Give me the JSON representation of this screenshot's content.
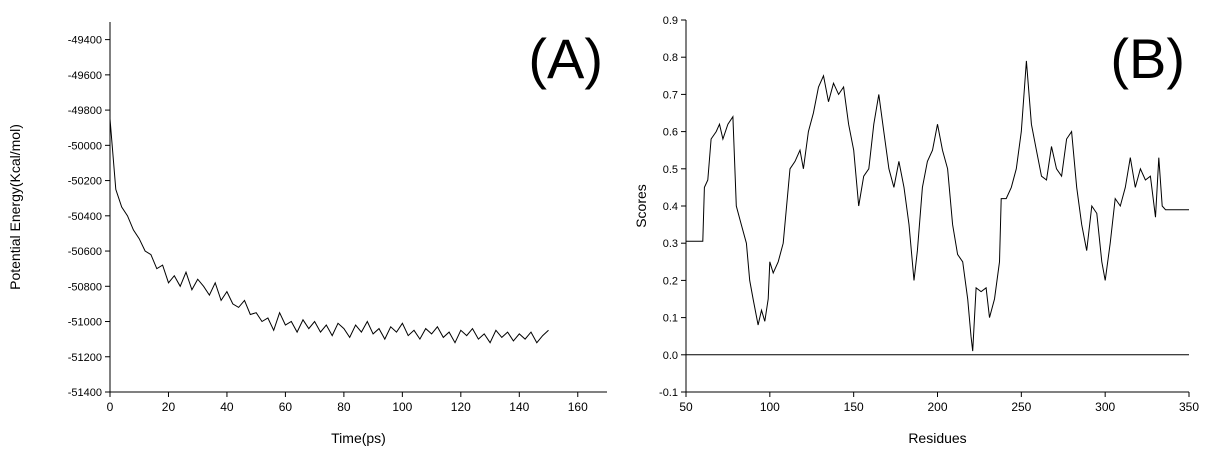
{
  "chart_data": [
    {
      "type": "line",
      "annotation": "(A)",
      "xlabel": "Time(ps)",
      "ylabel": "Potential Energy(Kcal/mol)",
      "xlim": [
        0,
        170
      ],
      "xticks": [
        0,
        20,
        40,
        60,
        80,
        100,
        120,
        140,
        160
      ],
      "ylim": [
        -51400,
        -49300
      ],
      "yticks": [
        -51400,
        -51200,
        -51000,
        -50800,
        -50600,
        -50400,
        -50200,
        -50000,
        -49800,
        -49600,
        -49400
      ],
      "color": "#000000",
      "x": [
        0,
        2,
        4,
        6,
        8,
        10,
        12,
        14,
        16,
        18,
        20,
        22,
        24,
        26,
        28,
        30,
        32,
        34,
        36,
        38,
        40,
        42,
        44,
        46,
        48,
        50,
        52,
        54,
        56,
        58,
        60,
        62,
        64,
        66,
        68,
        70,
        72,
        74,
        76,
        78,
        80,
        82,
        84,
        86,
        88,
        90,
        92,
        94,
        96,
        98,
        100,
        102,
        104,
        106,
        108,
        110,
        112,
        114,
        116,
        118,
        120,
        122,
        124,
        126,
        128,
        130,
        132,
        134,
        136,
        138,
        140,
        142,
        144,
        146,
        148,
        150
      ],
      "values": [
        -49850,
        -50250,
        -50350,
        -50400,
        -50480,
        -50530,
        -50600,
        -50620,
        -50700,
        -50680,
        -50780,
        -50740,
        -50800,
        -50720,
        -50820,
        -50760,
        -50800,
        -50850,
        -50780,
        -50880,
        -50830,
        -50900,
        -50920,
        -50880,
        -50960,
        -50950,
        -51000,
        -50980,
        -51050,
        -50950,
        -51020,
        -51000,
        -51060,
        -50990,
        -51040,
        -51000,
        -51060,
        -51020,
        -51080,
        -51010,
        -51040,
        -51090,
        -51020,
        -51060,
        -51000,
        -51070,
        -51040,
        -51100,
        -51030,
        -51060,
        -51010,
        -51080,
        -51050,
        -51100,
        -51040,
        -51070,
        -51030,
        -51090,
        -51060,
        -51120,
        -51050,
        -51080,
        -51040,
        -51100,
        -51070,
        -51120,
        -51050,
        -51090,
        -51060,
        -51110,
        -51070,
        -51100,
        -51060,
        -51120,
        -51080,
        -51050
      ]
    },
    {
      "type": "line",
      "annotation": "(B)",
      "xlabel": "Residues",
      "ylabel": "Scores",
      "xlim": [
        50,
        350
      ],
      "xticks": [
        50,
        100,
        150,
        200,
        250,
        300,
        350
      ],
      "ylim": [
        -0.1,
        0.9
      ],
      "yticks": [
        -0.1,
        {
          "value": 0,
          "label": "0.0"
        },
        0.1,
        0.2,
        0.3,
        0.4,
        0.5,
        0.6,
        0.7,
        0.8,
        0.9
      ],
      "hline": 0,
      "color": "#000000",
      "x": [
        50,
        60,
        61,
        63,
        65,
        68,
        70,
        72,
        75,
        78,
        80,
        83,
        86,
        88,
        90,
        93,
        95,
        97,
        99,
        100,
        102,
        105,
        108,
        110,
        112,
        115,
        118,
        120,
        123,
        126,
        129,
        132,
        135,
        138,
        141,
        144,
        147,
        150,
        153,
        156,
        159,
        162,
        165,
        168,
        171,
        174,
        177,
        180,
        183,
        186,
        188,
        191,
        194,
        197,
        200,
        203,
        206,
        209,
        212,
        215,
        218,
        220,
        221,
        223,
        226,
        229,
        231,
        234,
        237,
        238,
        241,
        244,
        247,
        250,
        253,
        256,
        259,
        262,
        265,
        268,
        271,
        274,
        277,
        280,
        283,
        286,
        289,
        292,
        295,
        298,
        300,
        303,
        306,
        309,
        312,
        315,
        318,
        321,
        324,
        327,
        330,
        332,
        334,
        336,
        350
      ],
      "values": [
        0.305,
        0.305,
        0.45,
        0.47,
        0.58,
        0.6,
        0.62,
        0.58,
        0.62,
        0.64,
        0.4,
        0.35,
        0.3,
        0.2,
        0.15,
        0.08,
        0.12,
        0.09,
        0.15,
        0.25,
        0.22,
        0.25,
        0.3,
        0.4,
        0.5,
        0.52,
        0.55,
        0.5,
        0.6,
        0.65,
        0.72,
        0.75,
        0.68,
        0.73,
        0.7,
        0.72,
        0.62,
        0.55,
        0.4,
        0.48,
        0.5,
        0.62,
        0.7,
        0.6,
        0.5,
        0.45,
        0.52,
        0.45,
        0.35,
        0.2,
        0.28,
        0.45,
        0.52,
        0.55,
        0.62,
        0.55,
        0.5,
        0.35,
        0.27,
        0.25,
        0.15,
        0.05,
        0.01,
        0.18,
        0.17,
        0.18,
        0.1,
        0.15,
        0.25,
        0.42,
        0.42,
        0.45,
        0.5,
        0.6,
        0.79,
        0.62,
        0.55,
        0.48,
        0.47,
        0.56,
        0.5,
        0.48,
        0.58,
        0.6,
        0.45,
        0.35,
        0.28,
        0.4,
        0.38,
        0.25,
        0.2,
        0.3,
        0.42,
        0.4,
        0.45,
        0.53,
        0.45,
        0.5,
        0.47,
        0.48,
        0.37,
        0.53,
        0.4,
        0.39,
        0.39
      ]
    }
  ]
}
